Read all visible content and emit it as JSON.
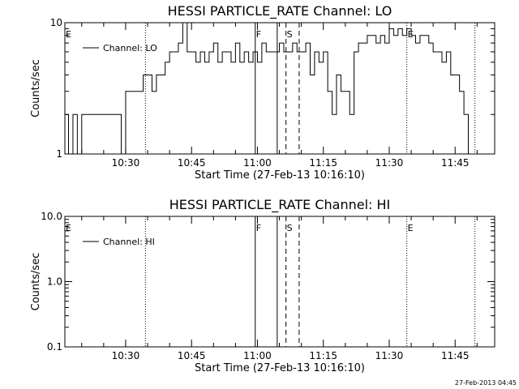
{
  "chart_data": [
    {
      "type": "line",
      "title": "HESSI PARTICLE_RATE Channel: LO",
      "xlabel": "Start Time (27-Feb-13 10:16:10)",
      "ylabel": "Counts/sec",
      "y_scale": "log",
      "ylim": [
        1,
        10
      ],
      "y_ticks": [
        "1",
        "10"
      ],
      "x_range": [
        "10:16:10",
        "11:54:00"
      ],
      "x_ticks": [
        "10:30",
        "10:45",
        "11:00",
        "11:15",
        "11:30",
        "11:45"
      ],
      "legend": "top-left",
      "series": [
        {
          "name": "Channel: LO",
          "color": "#000000",
          "x": [
            "10:16",
            "10:17",
            "10:18",
            "10:19",
            "10:20",
            "10:21",
            "10:22",
            "10:23",
            "10:24",
            "10:25",
            "10:26",
            "10:27",
            "10:28",
            "10:29",
            "10:30",
            "10:31",
            "10:32",
            "10:33",
            "10:34",
            "10:35",
            "10:36",
            "10:37",
            "10:38",
            "10:39",
            "10:40",
            "10:41",
            "10:42",
            "10:43",
            "10:44",
            "10:45",
            "10:46",
            "10:47",
            "10:48",
            "10:49",
            "10:50",
            "10:51",
            "10:52",
            "10:53",
            "10:54",
            "10:55",
            "10:56",
            "10:57",
            "10:58",
            "10:59",
            "11:00",
            "11:01",
            "11:02",
            "11:03",
            "11:04",
            "11:05",
            "11:06",
            "11:07",
            "11:08",
            "11:09",
            "11:10",
            "11:11",
            "11:12",
            "11:13",
            "11:14",
            "11:15",
            "11:16",
            "11:17",
            "11:18",
            "11:19",
            "11:20",
            "11:21",
            "11:22",
            "11:23",
            "11:24",
            "11:25",
            "11:26",
            "11:27",
            "11:28",
            "11:29",
            "11:30",
            "11:31",
            "11:32",
            "11:33",
            "11:34",
            "11:35",
            "11:36",
            "11:37",
            "11:38",
            "11:39",
            "11:40",
            "11:41",
            "11:42",
            "11:43",
            "11:44",
            "11:45",
            "11:46",
            "11:47",
            "11:48"
          ],
          "y": [
            2,
            1,
            2,
            1,
            2,
            2,
            2,
            2,
            2,
            2,
            2,
            2,
            2,
            1,
            3,
            3,
            3,
            3,
            4,
            4,
            3,
            4,
            4,
            5,
            6,
            6,
            7,
            10,
            6,
            6,
            5,
            6,
            5,
            6,
            7,
            5,
            6,
            6,
            5,
            7,
            5,
            6,
            5,
            6,
            5,
            7,
            6,
            6,
            6,
            7,
            6,
            6,
            7,
            6,
            6,
            7,
            4,
            6,
            5,
            6,
            3,
            2,
            4,
            3,
            3,
            2,
            6,
            7,
            7,
            8,
            8,
            7,
            8,
            7,
            9,
            8,
            9,
            8,
            9,
            8,
            7,
            8,
            8,
            7,
            6,
            6,
            5,
            6,
            4,
            4,
            3,
            2,
            1
          ]
        }
      ],
      "markers": [
        {
          "label": "E",
          "time": "10:16:10",
          "style": "label"
        },
        {
          "label": "",
          "time": "10:34:30",
          "style": "dotted"
        },
        {
          "label": "F",
          "time": "10:59:30",
          "style": "solid"
        },
        {
          "label": "",
          "time": "11:04:30",
          "style": "solid"
        },
        {
          "label": "S",
          "time": "11:06:30",
          "style": "dashed"
        },
        {
          "label": "",
          "time": "11:09:30",
          "style": "dashed"
        },
        {
          "label": "E",
          "time": "11:34:00",
          "style": "dotted"
        },
        {
          "label": "",
          "time": "11:49:30",
          "style": "dotted"
        }
      ]
    },
    {
      "type": "line",
      "title": "HESSI PARTICLE_RATE Channel: HI",
      "xlabel": "Start Time (27-Feb-13 10:16:10)",
      "ylabel": "Counts/sec",
      "y_scale": "log",
      "ylim": [
        0.1,
        10
      ],
      "y_ticks": [
        "0.1",
        "1.0",
        "10.0"
      ],
      "x_range": [
        "10:16:10",
        "11:54:00"
      ],
      "x_ticks": [
        "10:30",
        "10:45",
        "11:00",
        "11:15",
        "11:30",
        "11:45"
      ],
      "legend": "top-left",
      "series": [
        {
          "name": "Channel: HI",
          "color": "#000000",
          "x": [],
          "y": []
        }
      ],
      "markers": [
        {
          "label": "E",
          "time": "10:16:10",
          "style": "label"
        },
        {
          "label": "",
          "time": "10:34:30",
          "style": "dotted"
        },
        {
          "label": "F",
          "time": "10:59:30",
          "style": "solid"
        },
        {
          "label": "",
          "time": "11:04:30",
          "style": "solid"
        },
        {
          "label": "S",
          "time": "11:06:30",
          "style": "dashed"
        },
        {
          "label": "",
          "time": "11:09:30",
          "style": "dashed"
        },
        {
          "label": "E",
          "time": "11:34:00",
          "style": "dotted"
        },
        {
          "label": "",
          "time": "11:49:30",
          "style": "dotted"
        }
      ]
    }
  ],
  "footer": {
    "timestamp": "27-Feb-2013 04:45"
  }
}
